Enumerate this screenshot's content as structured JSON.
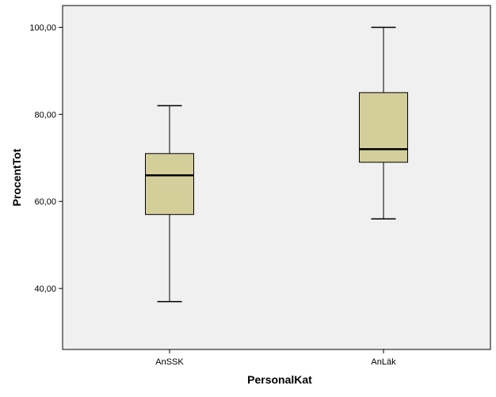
{
  "chart_data": {
    "type": "boxplot",
    "xlabel": "PersonalKat",
    "ylabel": "ProcentTot",
    "ylim": [
      26,
      105
    ],
    "yticks": [
      40,
      60,
      80,
      100
    ],
    "ytick_labels": [
      "40,00",
      "60,00",
      "80,00",
      "100,00"
    ],
    "categories": [
      "AnSSK",
      "AnLäk"
    ],
    "boxes": [
      {
        "category": "AnSSK",
        "whisker_low": 37,
        "q1": 57,
        "median": 66,
        "q3": 71,
        "whisker_high": 82
      },
      {
        "category": "AnLäk",
        "whisker_low": 56,
        "q1": 69,
        "median": 72,
        "q3": 85,
        "whisker_high": 100
      }
    ],
    "grid": false,
    "colors": {
      "plot_background": "#f0f0f0",
      "box_fill": "#d3ce9a",
      "line": "#000000"
    }
  }
}
